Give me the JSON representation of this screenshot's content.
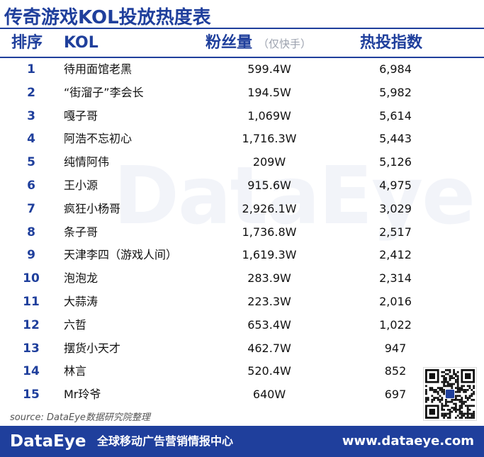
{
  "title": "传奇游戏KOL投放热度表",
  "header": {
    "rank": "排序",
    "kol": "KOL",
    "fans": "粉丝量",
    "fans_note": "（仅快手）",
    "hot": "热投指数"
  },
  "rows": [
    {
      "rank": "1",
      "kol": "待用面馆老黑",
      "fans": "599.4W",
      "hot": "6,984"
    },
    {
      "rank": "2",
      "kol": "“街溜子”李会长",
      "fans": "194.5W",
      "hot": "5,982"
    },
    {
      "rank": "3",
      "kol": "嘎子哥",
      "fans": "1,069W",
      "hot": "5,614"
    },
    {
      "rank": "4",
      "kol": "阿浩不忘初心",
      "fans": "1,716.3W",
      "hot": "5,443"
    },
    {
      "rank": "5",
      "kol": "纯情阿伟",
      "fans": "209W",
      "hot": "5,126"
    },
    {
      "rank": "6",
      "kol": "王小源",
      "fans": "915.6W",
      "hot": "4,975"
    },
    {
      "rank": "7",
      "kol": "疯狂小杨哥",
      "fans": "2,926.1W",
      "hot": "3,029"
    },
    {
      "rank": "8",
      "kol": "条子哥",
      "fans": "1,736.8W",
      "hot": "2,517"
    },
    {
      "rank": "9",
      "kol": "天津李四（游戏人间）",
      "fans": "1,619.3W",
      "hot": "2,412"
    },
    {
      "rank": "10",
      "kol": "泡泡龙",
      "fans": "283.9W",
      "hot": "2,314"
    },
    {
      "rank": "11",
      "kol": "大蒜涛",
      "fans": "223.3W",
      "hot": "2,016"
    },
    {
      "rank": "12",
      "kol": "六哲",
      "fans": "653.4W",
      "hot": "1,022"
    },
    {
      "rank": "13",
      "kol": "摆货小天才",
      "fans": "462.7W",
      "hot": "947"
    },
    {
      "rank": "14",
      "kol": "林言",
      "fans": "520.4W",
      "hot": "852"
    },
    {
      "rank": "15",
      "kol": "Mr玲爷",
      "fans": "640W",
      "hot": "697"
    }
  ],
  "watermark": "DataEye",
  "source": "source:  DataEye数据研究院整理",
  "footer": {
    "logo": "DataEye",
    "slogan": "全球移动广告营销情报中心",
    "url": "www.dataeye.com"
  },
  "colors": {
    "brand": "#1f3f9c"
  },
  "icons": {
    "qr": "qr-code-icon"
  }
}
